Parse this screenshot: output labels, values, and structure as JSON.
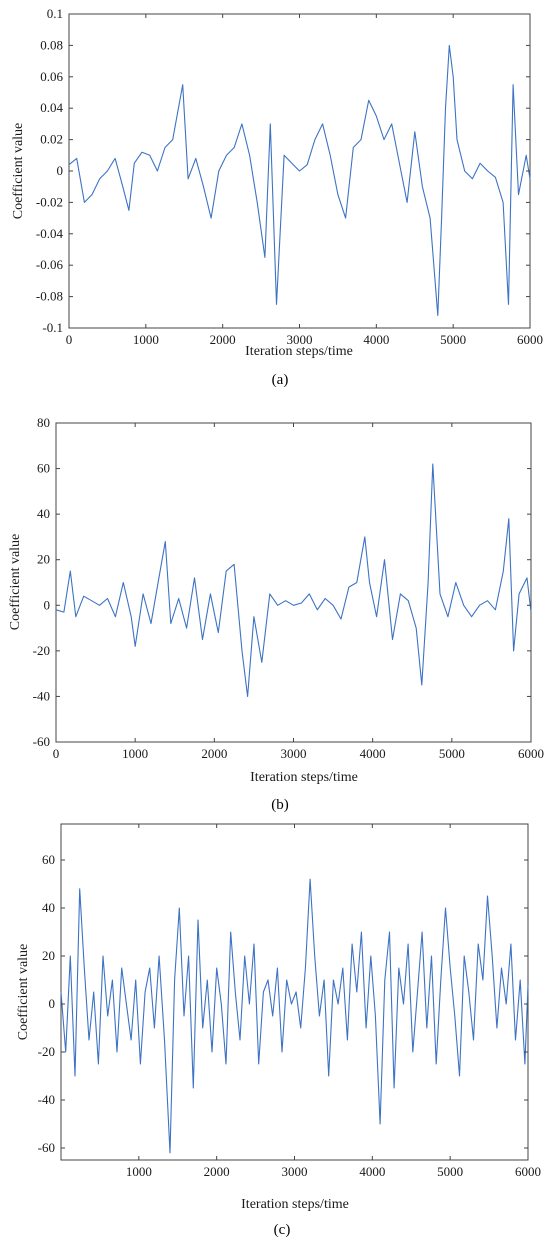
{
  "chart_data": [
    {
      "type": "line",
      "caption": "(a)",
      "xlabel": "Iteration steps/time",
      "ylabel": "Coefficient value",
      "xlim": [
        0,
        6000
      ],
      "ylim": [
        -0.1,
        0.1
      ],
      "xticks": [
        "0",
        "1000",
        "2000",
        "3000",
        "4000",
        "5000",
        "6000"
      ],
      "yticks": [
        "-0.1",
        "-0.08",
        "-0.06",
        "-0.04",
        "-0.02",
        "0",
        "0.02",
        "0.04",
        "0.06",
        "0.08",
        "0.1"
      ],
      "grid": false,
      "series": [
        {
          "color": "#3d73c4",
          "x": [
            0,
            100,
            200,
            300,
            400,
            500,
            600,
            700,
            780,
            850,
            950,
            1050,
            1150,
            1250,
            1350,
            1480,
            1550,
            1650,
            1750,
            1850,
            1950,
            2050,
            2150,
            2250,
            2350,
            2450,
            2550,
            2620,
            2700,
            2800,
            2900,
            3000,
            3100,
            3200,
            3300,
            3400,
            3500,
            3600,
            3700,
            3800,
            3900,
            4000,
            4100,
            4200,
            4300,
            4400,
            4500,
            4600,
            4700,
            4800,
            4850,
            4900,
            4950,
            5000,
            5050,
            5150,
            5250,
            5350,
            5450,
            5550,
            5650,
            5720,
            5780,
            5850,
            5950,
            6000
          ],
          "y": [
            0.004,
            0.008,
            -0.02,
            -0.015,
            -0.005,
            0.0,
            0.008,
            -0.01,
            -0.025,
            0.005,
            0.012,
            0.01,
            0.0,
            0.015,
            0.02,
            0.055,
            -0.005,
            0.008,
            -0.01,
            -0.03,
            0.0,
            0.01,
            0.015,
            0.03,
            0.01,
            -0.02,
            -0.055,
            0.03,
            -0.085,
            0.01,
            0.005,
            0.0,
            0.004,
            0.02,
            0.03,
            0.01,
            -0.015,
            -0.03,
            0.015,
            0.02,
            0.045,
            0.035,
            0.02,
            0.03,
            0.005,
            -0.02,
            0.025,
            -0.01,
            -0.03,
            -0.092,
            -0.03,
            0.04,
            0.08,
            0.06,
            0.02,
            0.0,
            -0.005,
            0.005,
            0.0,
            -0.004,
            -0.02,
            -0.085,
            0.055,
            -0.015,
            0.01,
            -0.005
          ]
        }
      ]
    },
    {
      "type": "line",
      "caption": "(b)",
      "xlabel": "Iteration steps/time",
      "ylabel": "Coefficient value",
      "xlim": [
        0,
        6000
      ],
      "ylim": [
        -60,
        80
      ],
      "xticks": [
        "0",
        "1000",
        "2000",
        "3000",
        "4000",
        "5000",
        "6000"
      ],
      "yticks": [
        "-60",
        "-40",
        "-20",
        "0",
        "20",
        "40",
        "60",
        "80"
      ],
      "grid": false,
      "series": [
        {
          "color": "#3d73c4",
          "x": [
            0,
            100,
            180,
            250,
            350,
            450,
            550,
            650,
            750,
            850,
            950,
            1000,
            1100,
            1200,
            1300,
            1380,
            1450,
            1550,
            1650,
            1750,
            1850,
            1950,
            2050,
            2150,
            2250,
            2350,
            2420,
            2500,
            2600,
            2700,
            2800,
            2900,
            3000,
            3100,
            3200,
            3300,
            3400,
            3500,
            3600,
            3700,
            3800,
            3900,
            3960,
            4050,
            4150,
            4250,
            4350,
            4450,
            4550,
            4620,
            4700,
            4760,
            4850,
            4950,
            5050,
            5150,
            5250,
            5350,
            5450,
            5550,
            5650,
            5720,
            5780,
            5850,
            5950,
            6000
          ],
          "y": [
            -2,
            -3,
            15,
            -5,
            4,
            2,
            0,
            3,
            -5,
            10,
            -5,
            -18,
            5,
            -8,
            12,
            28,
            -8,
            3,
            -10,
            12,
            -15,
            5,
            -12,
            15,
            18,
            -20,
            -40,
            -5,
            -25,
            5,
            0,
            2,
            0,
            1,
            5,
            -2,
            3,
            0,
            -6,
            8,
            10,
            30,
            10,
            -5,
            20,
            -15,
            5,
            2,
            -10,
            -35,
            10,
            62,
            5,
            -5,
            10,
            0,
            -5,
            0,
            2,
            -2,
            15,
            38,
            -20,
            5,
            12,
            -3
          ]
        }
      ]
    },
    {
      "type": "line",
      "caption": "(c)",
      "xlabel": "Iteration steps/time",
      "ylabel": "Coefficient value",
      "xlim": [
        0,
        6000
      ],
      "ylim": [
        -65,
        75
      ],
      "xticks": [
        "1000",
        "2000",
        "3000",
        "4000",
        "5000",
        "6000"
      ],
      "yticks": [
        "-60",
        "-40",
        "-20",
        "0",
        "20",
        "40",
        "60"
      ],
      "grid": false,
      "series": [
        {
          "color": "#3d73c4",
          "x": [
            0,
            60,
            120,
            180,
            240,
            300,
            360,
            420,
            480,
            540,
            600,
            660,
            720,
            780,
            840,
            900,
            960,
            1020,
            1080,
            1140,
            1200,
            1260,
            1330,
            1400,
            1460,
            1520,
            1580,
            1640,
            1700,
            1760,
            1820,
            1880,
            1940,
            2000,
            2060,
            2120,
            2180,
            2240,
            2300,
            2360,
            2420,
            2480,
            2540,
            2600,
            2660,
            2720,
            2780,
            2840,
            2900,
            2960,
            3020,
            3080,
            3140,
            3200,
            3260,
            3320,
            3380,
            3440,
            3500,
            3560,
            3620,
            3680,
            3740,
            3800,
            3860,
            3920,
            3980,
            4040,
            4100,
            4160,
            4220,
            4280,
            4340,
            4400,
            4460,
            4520,
            4580,
            4640,
            4700,
            4760,
            4820,
            4880,
            4940,
            5000,
            5060,
            5120,
            5180,
            5240,
            5300,
            5360,
            5420,
            5480,
            5540,
            5600,
            5660,
            5720,
            5780,
            5840,
            5900,
            5960,
            6000
          ],
          "y": [
            5,
            -20,
            20,
            -30,
            48,
            15,
            -15,
            5,
            -25,
            20,
            -5,
            10,
            -20,
            15,
            0,
            -15,
            10,
            -25,
            5,
            15,
            -10,
            20,
            -15,
            -62,
            10,
            40,
            -5,
            20,
            -35,
            35,
            -10,
            10,
            -20,
            15,
            0,
            -25,
            30,
            5,
            -15,
            20,
            0,
            25,
            -25,
            5,
            10,
            -5,
            15,
            -20,
            10,
            0,
            5,
            -10,
            15,
            52,
            20,
            -5,
            10,
            -30,
            10,
            0,
            15,
            -15,
            25,
            5,
            30,
            -10,
            20,
            -5,
            -50,
            10,
            30,
            -35,
            15,
            0,
            25,
            -20,
            5,
            30,
            -10,
            20,
            -25,
            10,
            40,
            15,
            -5,
            -30,
            20,
            5,
            -15,
            25,
            10,
            45,
            20,
            -10,
            15,
            0,
            25,
            -15,
            10,
            -25,
            8
          ]
        }
      ]
    }
  ]
}
